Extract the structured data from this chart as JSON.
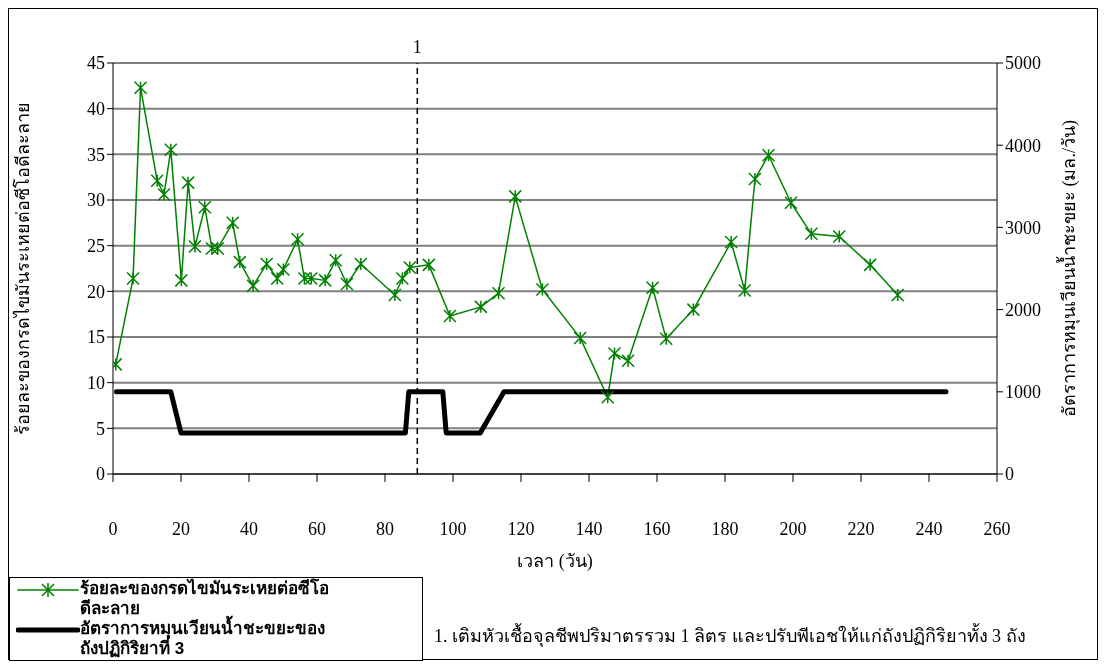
{
  "chart_data": {
    "type": "line",
    "xlabel": "เวลา (วัน)",
    "ylabel": "ร้อยละของกรดไขมันระเหยต่อซีโอดีละลาย",
    "y2label": "อัตราการหมุนเวียนน้ำชะขยะ (มล./วัน)",
    "xlim": [
      0,
      260
    ],
    "xticks": [
      0,
      20,
      40,
      60,
      80,
      100,
      120,
      140,
      160,
      180,
      200,
      220,
      240,
      260
    ],
    "ylim": [
      0,
      45
    ],
    "yticks": [
      0,
      5,
      10,
      15,
      20,
      25,
      30,
      35,
      40,
      45
    ],
    "y2lim": [
      0,
      5000
    ],
    "y2ticks": [
      0,
      1000,
      2000,
      3000,
      4000,
      5000
    ],
    "grid": "y",
    "legend": "bottom left",
    "series": [
      {
        "name": "ร้อยละของกรดไขมันระเหยต่อซีโอดีละลาย",
        "color": "#008000",
        "marker": "cross",
        "x": [
          0.8,
          5.9,
          8.1,
          13.0,
          15.0,
          17.0,
          20.1,
          22.1,
          24.1,
          27.0,
          29.1,
          30.8,
          35.2,
          37.3,
          41.2,
          45.2,
          48.3,
          50.1,
          54.3,
          56.3,
          58.3,
          62.4,
          65.5,
          68.8,
          72.9,
          82.9,
          85.1,
          87.3,
          92.9,
          99.1,
          108.2,
          113.4,
          118.3,
          126.3,
          137.4,
          145.5,
          147.5,
          151.5,
          158.7,
          162.7,
          170.7,
          181.8,
          185.8,
          188.8,
          192.8,
          199.4,
          205.4,
          213.6,
          222.7,
          230.8
        ],
        "values": [
          12.0,
          21.4,
          42.3,
          32.1,
          30.6,
          35.5,
          21.2,
          31.9,
          24.9,
          29.2,
          24.7,
          24.7,
          27.5,
          23.2,
          20.6,
          23.0,
          21.4,
          22.4,
          25.7,
          21.4,
          21.4,
          21.2,
          23.4,
          20.8,
          23.0,
          19.6,
          21.4,
          22.6,
          22.9,
          17.3,
          18.3,
          19.8,
          30.4,
          20.2,
          14.9,
          8.4,
          13.2,
          12.4,
          20.4,
          14.8,
          18.0,
          25.4,
          20.1,
          32.3,
          34.9,
          29.7,
          26.3,
          26.0,
          22.9,
          19.6
        ]
      },
      {
        "name": "อัตราการหมุนเวียนน้ำชะขยะของถังปฏิกิริยาที่ 3",
        "color": "#000000",
        "marker": "none",
        "axis": "y2",
        "x": [
          1,
          17,
          20,
          86,
          87,
          97,
          98,
          108,
          115,
          245
        ],
        "values": [
          1000,
          1000,
          500,
          500,
          1000,
          1000,
          500,
          500,
          1000,
          1000
        ]
      }
    ],
    "ref_lines": [
      {
        "axis": "x",
        "value": 89.5,
        "line_style": "dashed",
        "color": "#000000"
      }
    ],
    "annotations": [
      "1",
      "1.   เติมหัวเชื้อจุลชีพปริมาตรรวม 1 ลิตร และปรับพีเอชให้แก่ถังปฏิกิริยาทั้ง 3 ถัง"
    ]
  }
}
